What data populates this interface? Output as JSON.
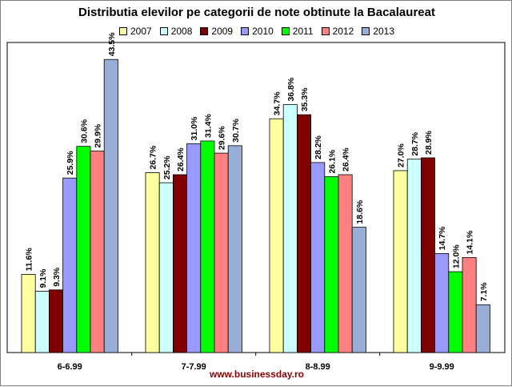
{
  "chart_data": {
    "type": "bar",
    "title": "Distributia elevilor pe categorii de note obtinute la Bacalaureat",
    "categories": [
      "6-6.99",
      "7-7.99",
      "8-8.99",
      "9-9.99"
    ],
    "series": [
      {
        "name": "2007",
        "color": "#FFFFA0",
        "values": [
          11.6,
          26.7,
          34.7,
          27.0
        ],
        "labels": [
          "11.6%",
          "26.7%",
          "34.7%",
          "27.0%"
        ]
      },
      {
        "name": "2008",
        "color": "#CCFFFF",
        "values": [
          9.1,
          25.2,
          36.8,
          28.7
        ],
        "labels": [
          "9.1%",
          "25.2%",
          "36.8%",
          "28.7%"
        ]
      },
      {
        "name": "2009",
        "color": "#800000",
        "values": [
          9.3,
          26.4,
          35.3,
          28.9
        ],
        "labels": [
          "9.3%",
          "26.4%",
          "35.3%",
          "28.9%"
        ]
      },
      {
        "name": "2010",
        "color": "#9999FF",
        "values": [
          25.9,
          31.0,
          28.2,
          14.7
        ],
        "labels": [
          "25.9%",
          "31.0%",
          "28.2%",
          "14.7%"
        ]
      },
      {
        "name": "2011",
        "color": "#00FF00",
        "values": [
          30.6,
          31.4,
          26.1,
          12.0
        ],
        "labels": [
          "30.6%",
          "31.4%",
          "26.1%",
          "12.0%"
        ]
      },
      {
        "name": "2012",
        "color": "#FF8080",
        "values": [
          29.9,
          29.6,
          26.4,
          14.1
        ],
        "labels": [
          "29.9%",
          "29.6%",
          "26.4%",
          "14.1%"
        ]
      },
      {
        "name": "2013",
        "color": "#99AED6",
        "values": [
          43.5,
          30.7,
          18.6,
          7.1
        ],
        "labels": [
          "43.5%",
          "30.7%",
          "18.6%",
          "7.1%"
        ]
      }
    ],
    "ylim": [
      0,
      44
    ],
    "legend_position": "top",
    "grid": false
  },
  "footer": "www.businessday.ro"
}
